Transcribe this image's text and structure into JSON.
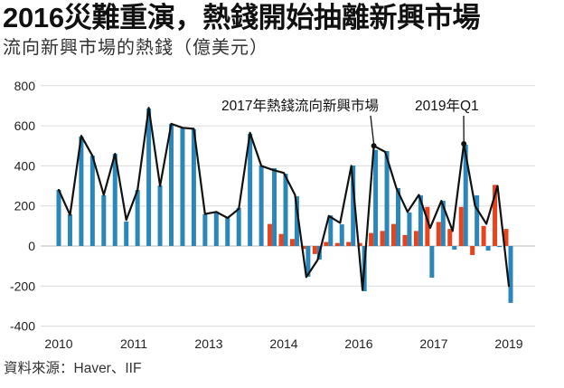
{
  "chart_data": {
    "type": "bar",
    "title": "2016災難重演，熱錢開始抽離新興市場",
    "subtitle": "流向新興市場的熱錢（億美元）",
    "source": "資料來源：Haver、IIF",
    "xlabel": "",
    "ylabel": "",
    "ylim": [
      -400,
      800
    ],
    "y_ticks": [
      "800",
      "600",
      "400",
      "200",
      "0",
      "-200",
      "-400"
    ],
    "x_tick_labels": [
      "2010",
      "2011",
      "2013",
      "2014",
      "2016",
      "2017",
      "2019"
    ],
    "grid": true,
    "legend": "none",
    "series": [
      {
        "type": "bar",
        "color": "#2b87b9",
        "values": [
          280,
          158,
          546,
          451,
          253,
          460,
          122,
          280,
          686,
          302,
          609,
          587,
          582,
          158,
          172,
          144,
          190,
          560,
          402,
          388,
          361,
          248,
          -153,
          -68,
          153,
          108,
          402,
          -226,
          480,
          474,
          289,
          167,
          253,
          -158,
          226,
          -18,
          505,
          253,
          -23,
          -5,
          -284
        ]
      },
      {
        "type": "bar",
        "color": "#e8431c",
        "values": [
          null,
          null,
          null,
          null,
          null,
          null,
          null,
          null,
          null,
          null,
          null,
          null,
          null,
          null,
          null,
          null,
          null,
          null,
          null,
          110,
          60,
          35,
          -15,
          -40,
          20,
          15,
          20,
          15,
          65,
          75,
          110,
          55,
          75,
          195,
          120,
          85,
          195,
          -45,
          100,
          305,
          85
        ]
      },
      {
        "type": "line",
        "color": "#111111",
        "values": [
          280,
          155,
          550,
          450,
          255,
          460,
          130,
          280,
          690,
          300,
          610,
          590,
          585,
          160,
          170,
          140,
          185,
          565,
          400,
          380,
          365,
          255,
          -155,
          -70,
          150,
          115,
          400,
          -220,
          500,
          470,
          290,
          170,
          255,
          90,
          225,
          75,
          510,
          200,
          110,
          300,
          -200
        ]
      }
    ],
    "annotations": [
      {
        "text": "2017年熱錢流向新興市場"
      },
      {
        "text": "2019年Q1"
      }
    ],
    "colors": {
      "grid": "#dcdcdc",
      "zero_line": "#bdbdbd"
    }
  }
}
